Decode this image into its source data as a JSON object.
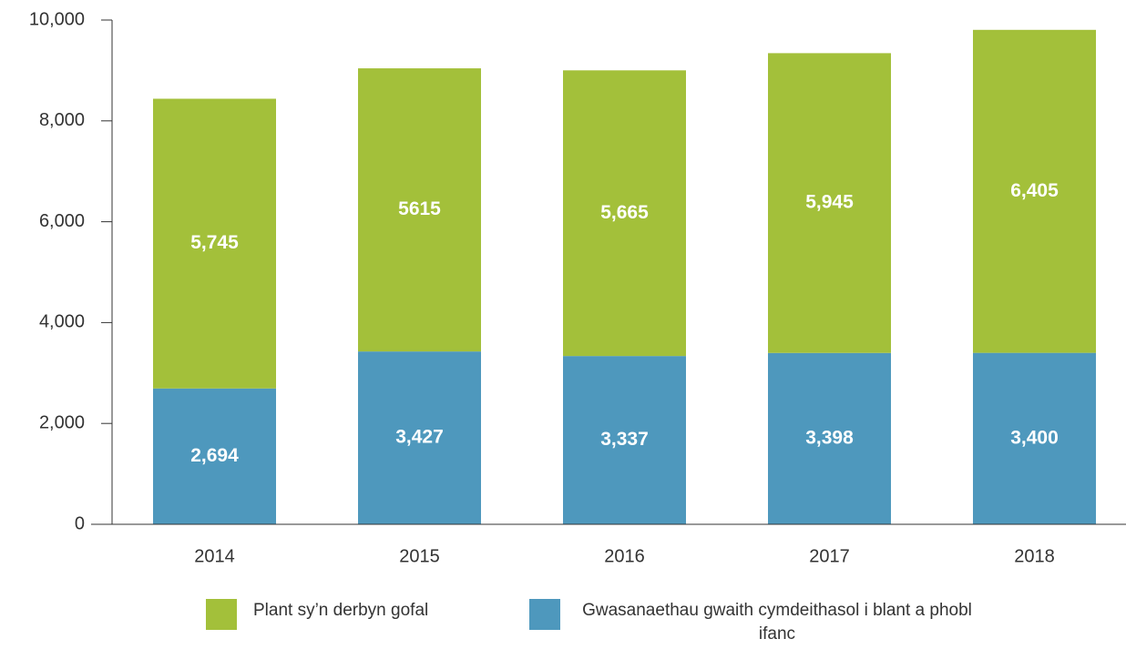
{
  "chart_data": {
    "type": "stacked_bar",
    "categories": [
      "2014",
      "2015",
      "2016",
      "2017",
      "2018"
    ],
    "series": [
      {
        "name": "Gwasanaethau gwaith cymdeithasol i blant a phobl ifanc",
        "color": "#4e98bd",
        "values": [
          2694,
          3427,
          3337,
          3398,
          3400
        ],
        "value_labels": [
          "2,694",
          "3,427",
          "3,337",
          "3,398",
          "3,400"
        ]
      },
      {
        "name": "Plant sy’n derbyn gofal",
        "color": "#a3c03a",
        "values": [
          5745,
          5615,
          5665,
          5945,
          6405
        ],
        "value_labels": [
          "5,745",
          "5615",
          "5,665",
          "5,945",
          "6,405"
        ]
      }
    ],
    "ylim": [
      0,
      10000
    ],
    "yticks": [
      0,
      {
        "value": 2000,
        "label": "2,000"
      },
      {
        "value": 4000,
        "label": "4,000"
      },
      {
        "value": 6000,
        "label": "6,000"
      },
      {
        "value": 8000,
        "label": "8,000"
      },
      {
        "value": 10000,
        "label": "10,000"
      }
    ],
    "legend": "bottom"
  }
}
